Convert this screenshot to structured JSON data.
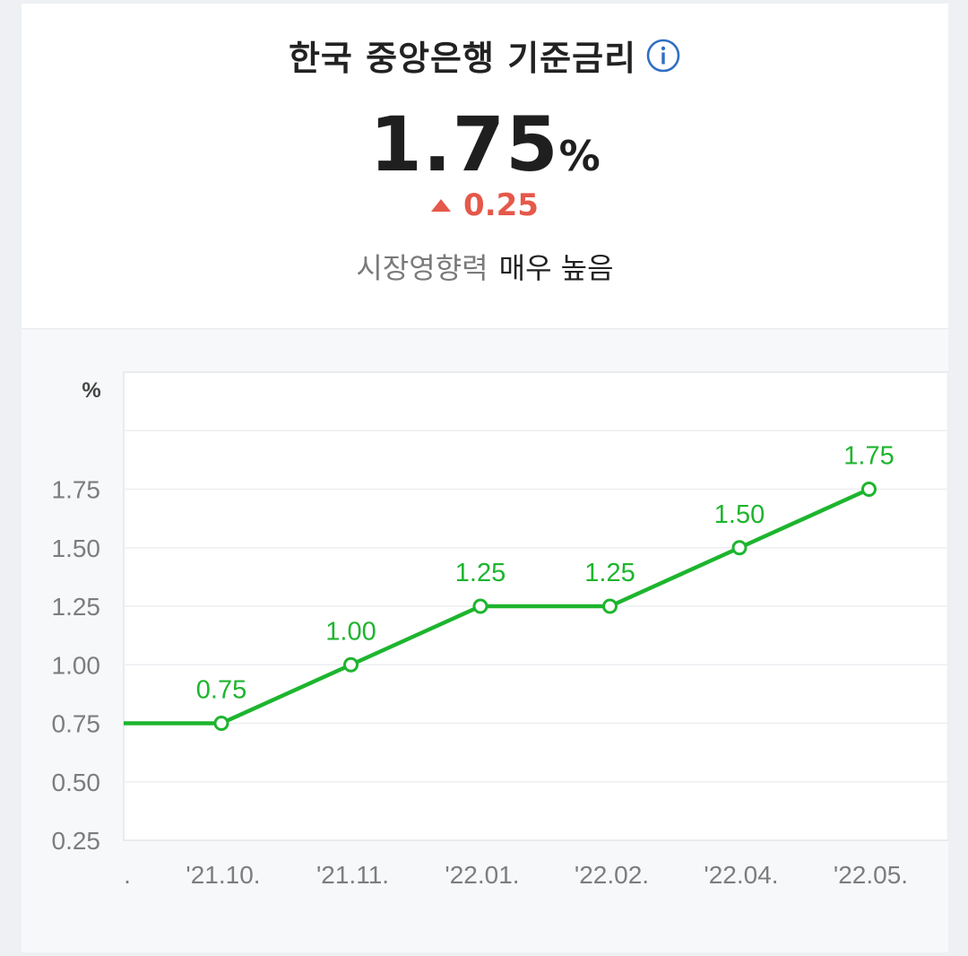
{
  "header": {
    "title": "한국 중앙은행 기준금리",
    "info_icon": "info-circle-icon"
  },
  "rate": {
    "value": "1.75",
    "unit": "%"
  },
  "change": {
    "direction": "up",
    "value": "0.25",
    "color": "#e5584a"
  },
  "impact": {
    "label": "시장영향력",
    "value": "매우 높음"
  },
  "chart_data": {
    "type": "line",
    "ylabel": "%",
    "ylim": [
      0.25,
      2.25
    ],
    "yticks": [
      "1.75",
      "1.50",
      "1.25",
      "1.00",
      "0.75",
      "0.50",
      "0.25"
    ],
    "x": [
      "'21.10.",
      "'21.11.",
      "'22.01.",
      "'22.02.",
      "'22.04.",
      "'22.05."
    ],
    "values": [
      0.75,
      1.0,
      1.25,
      1.25,
      1.5,
      1.75
    ],
    "labels": [
      "0.75",
      "1.00",
      "1.25",
      "1.25",
      "1.50",
      "1.75"
    ],
    "prior_value": 0.75,
    "prior_tick": ".",
    "grid": true,
    "color": "#1db52e"
  }
}
